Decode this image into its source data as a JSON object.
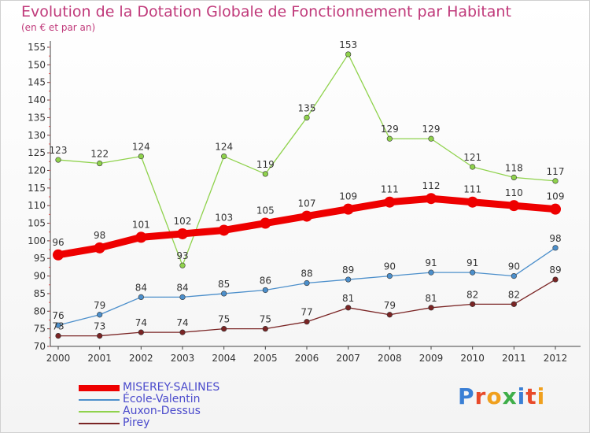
{
  "header": {
    "title": "Evolution de la Dotation Globale de Fonctionnement par Habitant",
    "subtitle": "(en € et par an)"
  },
  "logo": {
    "text": "Proxiti",
    "colors": [
      "#3a7fd5",
      "#e84a2a",
      "#f0a01e",
      "#3fae49",
      "#3a7fd5",
      "#e84a2a",
      "#f0a01e"
    ]
  },
  "chart_data": {
    "type": "line",
    "x": [
      2000,
      2001,
      2002,
      2003,
      2004,
      2005,
      2006,
      2007,
      2008,
      2009,
      2010,
      2011,
      2012
    ],
    "ylim": [
      70,
      155
    ],
    "yticks": [
      70,
      75,
      80,
      85,
      90,
      95,
      100,
      105,
      110,
      115,
      120,
      125,
      130,
      135,
      140,
      145,
      150,
      155
    ],
    "grid": false,
    "legend_position": "bottom-left",
    "series": [
      {
        "name": "MISEREY-SALINES",
        "color": "#ee0000",
        "values": [
          96,
          98,
          101,
          102,
          103,
          105,
          107,
          109,
          111,
          112,
          111,
          110,
          109
        ]
      },
      {
        "name": "École-Valentin",
        "color": "#4c8fcb",
        "values": [
          76,
          79,
          84,
          84,
          85,
          86,
          88,
          89,
          90,
          91,
          91,
          90,
          98
        ]
      },
      {
        "name": "Auxon-Dessus",
        "color": "#8fd24c",
        "values": [
          123,
          122,
          124,
          93,
          124,
          119,
          135,
          153,
          129,
          129,
          121,
          118,
          117
        ]
      },
      {
        "name": "Pirey",
        "color": "#7a2424",
        "values": [
          73,
          73,
          74,
          74,
          75,
          75,
          77,
          81,
          79,
          81,
          82,
          82,
          89
        ]
      }
    ]
  }
}
